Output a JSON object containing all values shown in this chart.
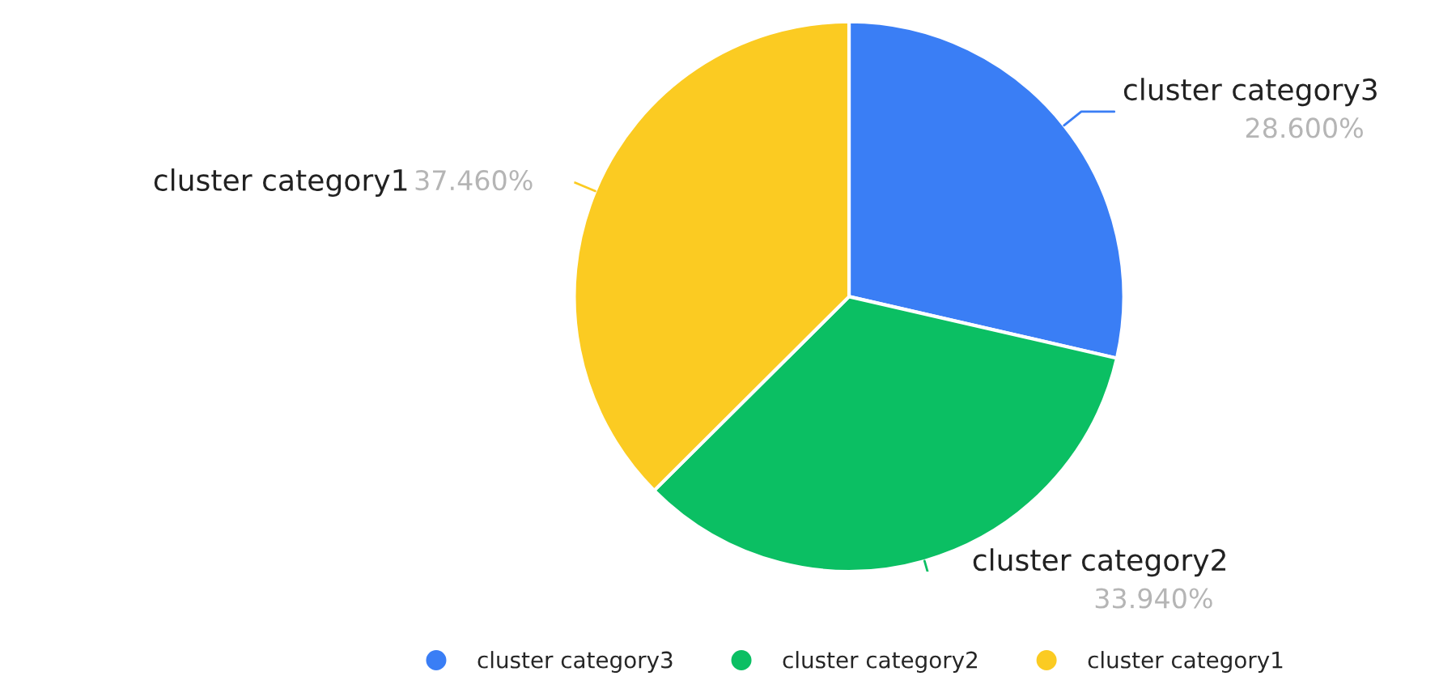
{
  "chart_data": {
    "type": "pie",
    "categories": [
      "cluster category3",
      "cluster category2",
      "cluster category1"
    ],
    "values": [
      28.6,
      33.94,
      37.46
    ],
    "value_labels": [
      "28.600%",
      "33.940%",
      "37.460%"
    ],
    "colors": [
      "#3a7ef5",
      "#0bbf63",
      "#fbcb22"
    ],
    "legend": "bottom"
  }
}
